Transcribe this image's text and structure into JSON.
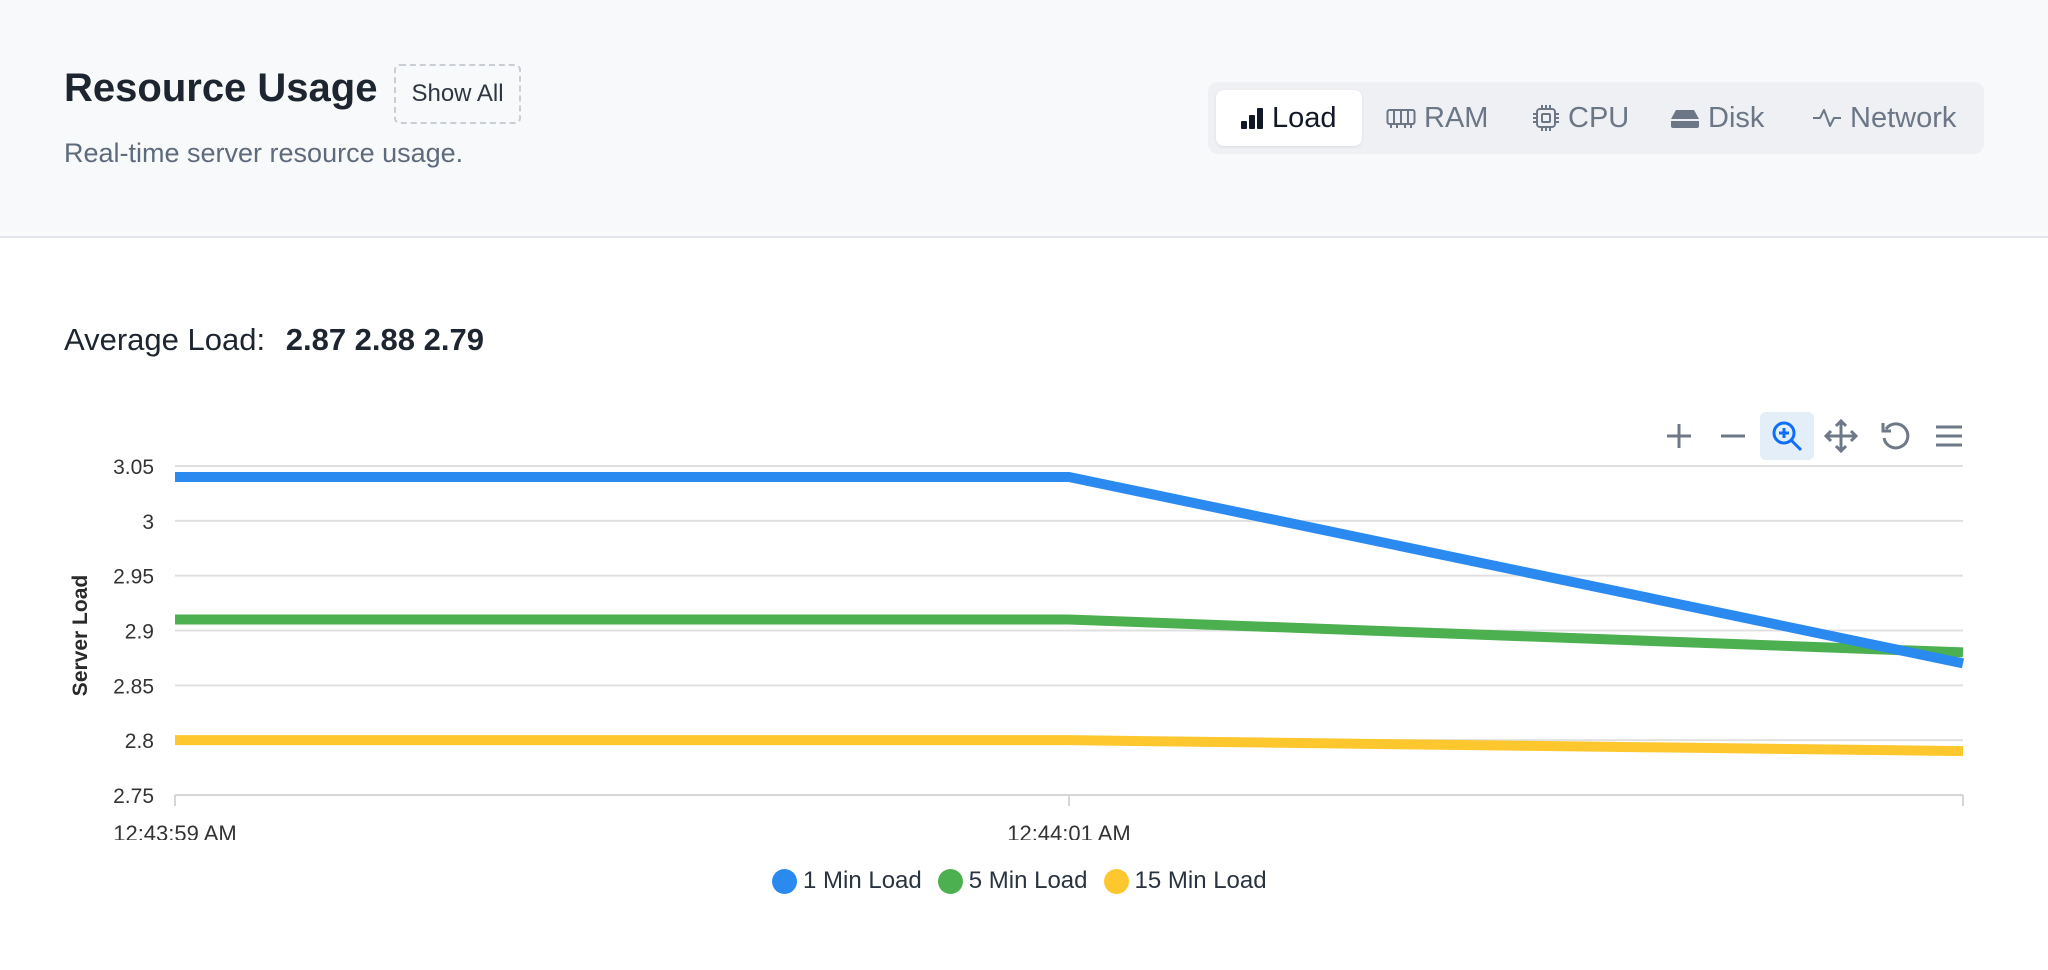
{
  "header": {
    "title": "Resource Usage",
    "show_all_label": "Show All",
    "subtitle": "Real-time server resource usage."
  },
  "tabs": [
    {
      "label": "Load",
      "icon": "bar-chart-icon",
      "active": true
    },
    {
      "label": "RAM",
      "icon": "memory-icon",
      "active": false
    },
    {
      "label": "CPU",
      "icon": "cpu-icon",
      "active": false
    },
    {
      "label": "Disk",
      "icon": "disk-icon",
      "active": false
    },
    {
      "label": "Network",
      "icon": "activity-icon",
      "active": false
    }
  ],
  "average_load": {
    "label": "Average Load:",
    "values": "2.87 2.88 2.79"
  },
  "toolbar": [
    "zoom-in-icon",
    "zoom-out-icon",
    "selection-zoom-icon",
    "pan-icon",
    "reset-icon",
    "menu-icon"
  ],
  "colors": {
    "one_min": "#2b8af0",
    "five_min": "#4caf50",
    "fifteen_min": "#fdc72d",
    "accent": "#0d6efd"
  },
  "chart_data": {
    "type": "line",
    "ylabel": "Server Load",
    "xlabel": "",
    "ylim": [
      2.75,
      3.05
    ],
    "y_ticks": [
      "3.05",
      "3",
      "2.95",
      "2.9",
      "2.85",
      "2.8",
      "2.75"
    ],
    "x_tick_labels": [
      "12:43:59 AM",
      "12:44:01 AM"
    ],
    "grid": true,
    "legend_position": "bottom",
    "series": [
      {
        "name": "1 Min Load",
        "values": [
          3.04,
          3.04,
          2.87
        ]
      },
      {
        "name": "5 Min Load",
        "values": [
          2.91,
          2.91,
          2.88
        ]
      },
      {
        "name": "15 Min Load",
        "values": [
          2.8,
          2.8,
          2.79
        ]
      }
    ]
  }
}
